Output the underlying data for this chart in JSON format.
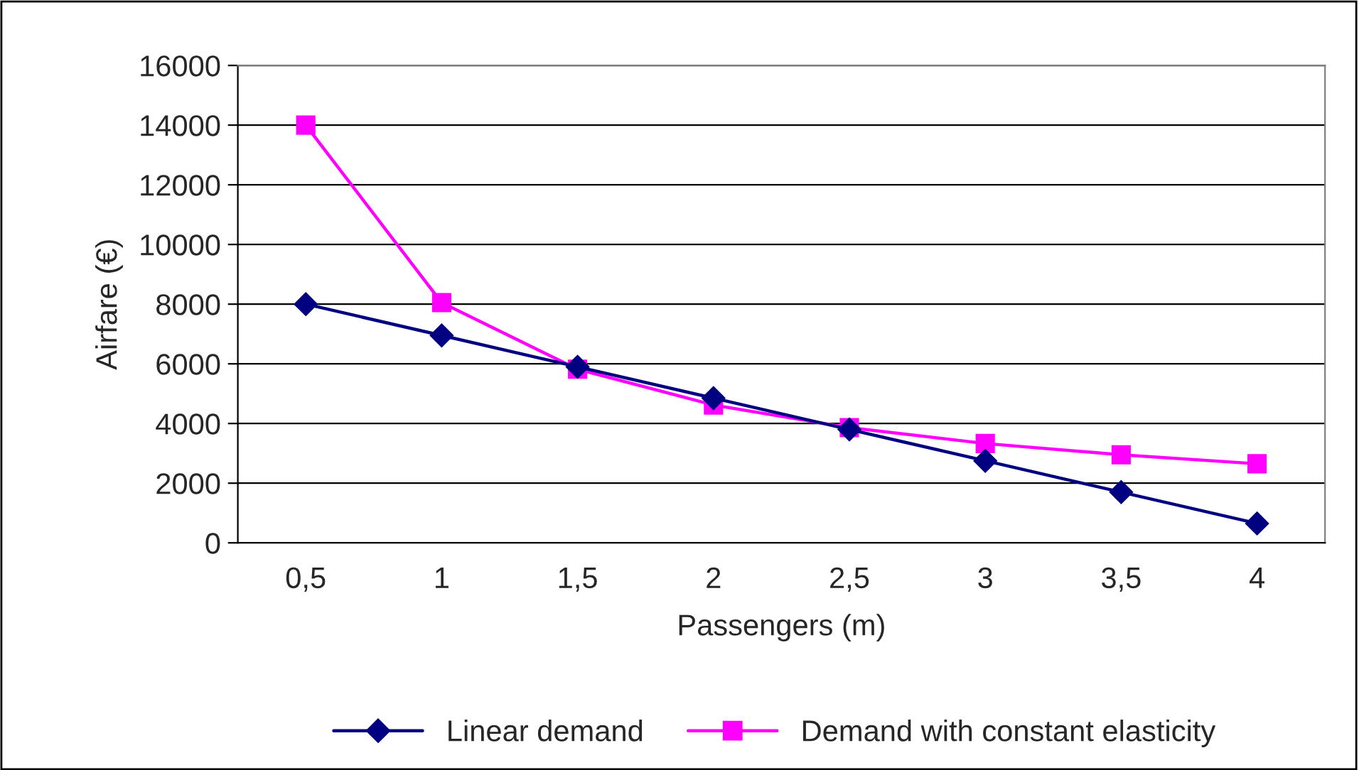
{
  "chart_data": {
    "type": "line",
    "xlabel": "Passengers (m)",
    "ylabel": "Airfare (€)",
    "categories": [
      "0,5",
      "1",
      "1,5",
      "2",
      "2,5",
      "3",
      "3,5",
      "4"
    ],
    "ylim": [
      0,
      16000
    ],
    "yticks": [
      0,
      2000,
      4000,
      6000,
      8000,
      10000,
      12000,
      14000,
      16000
    ],
    "grid": "y",
    "legend": "bottom",
    "series": [
      {
        "name": "Linear demand",
        "color": "#000080",
        "marker": "diamond",
        "values": [
          8000,
          6950,
          5900,
          4850,
          3800,
          2750,
          1700,
          650
        ]
      },
      {
        "name": "Demand with constant elasticity",
        "color": "#ff00ff",
        "marker": "square",
        "values": [
          14000,
          8050,
          5820,
          4620,
          3860,
          3330,
          2950,
          2650
        ]
      }
    ]
  }
}
